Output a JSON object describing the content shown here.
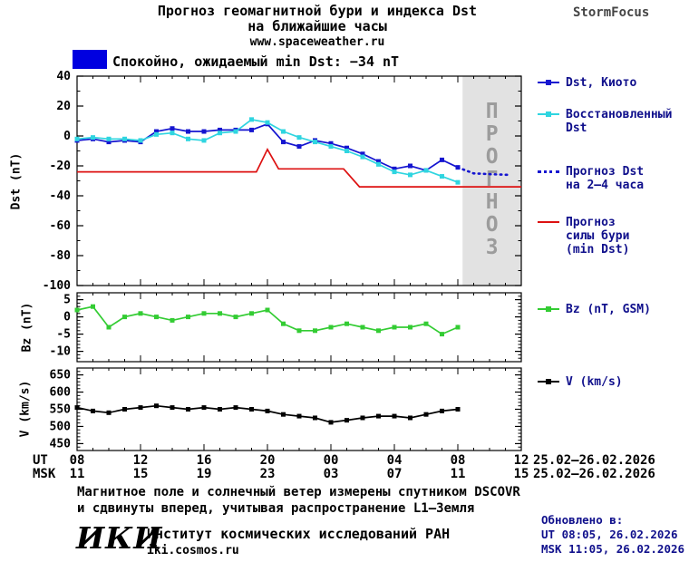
{
  "header": {
    "title_line1": "Прогноз геомагнитной бури и индекса Dst",
    "title_line2": "на ближайшие часы",
    "site": "www.spaceweather.ru",
    "brand": "StormFocus"
  },
  "status": {
    "label": "Спокойно, ожидаемый min Dst: −34 nT"
  },
  "colors": {
    "dst_kyoto": "#1515d0",
    "dst_recon": "#2fd5e0",
    "dst_forecast": "#1515d0",
    "storm_forecast": "#dd1111",
    "bz": "#33cc33",
    "v": "#000000",
    "status_box": "#0000e0",
    "forecast_band": "#e2e2e2",
    "forecast_band_text": "#9c9c9c",
    "legend_text": "#10108c"
  },
  "legend_main": {
    "kyoto": "Dst, Киото",
    "recon_line1": "Восстановленный",
    "recon_line2": "Dst",
    "forecast_line1": "Прогноз Dst",
    "forecast_line2": "на 2–4 часа",
    "storm_line1": "Прогноз",
    "storm_line2": "силы бури",
    "storm_line3": "(min Dst)",
    "bz": "Bz (nT, GSM)",
    "v": "V (km/s)"
  },
  "axes": {
    "dst_label": "Dst (nT)",
    "bz_label": "Bz (nT)",
    "v_label": "V (km/s)",
    "ut_row_label": "UT",
    "msk_row_label": "MSK",
    "ut_ticks": [
      "08",
      "12",
      "16",
      "20",
      "00",
      "04",
      "08",
      "12"
    ],
    "msk_ticks": [
      "11",
      "15",
      "19",
      "23",
      "03",
      "07",
      "11",
      "15"
    ],
    "ut_date": "25.02–26.02.2026",
    "msk_date": "25.02–26.02.2026"
  },
  "footnote": {
    "line1": "Магнитное поле и солнечный ветер измерены спутником DSCOVR",
    "line2": "и сдвинуты вперед, учитывая распространение L1–Земля"
  },
  "footer": {
    "logo": "ИКИ",
    "institute": "Институт космических исследований РАН",
    "site": "iki.cosmos.ru",
    "updated_label": "Обновлено в:",
    "updated_ut": "UT  08:05, 26.02.2026",
    "updated_msk": "MSK 11:05, 26.02.2026"
  },
  "chart_data": [
    {
      "type": "line",
      "title": "Прогноз геомагнитной бури и индекса Dst",
      "ylabel": "Dst (nT)",
      "xlabel": "UT",
      "xlim": [
        8,
        36
      ],
      "ylim": [
        -100,
        40
      ],
      "yticks": [
        40,
        20,
        0,
        -20,
        -40,
        -60,
        -80,
        -100
      ],
      "xtick_hours": [
        8,
        12,
        16,
        20,
        24,
        28,
        32,
        36
      ],
      "x_hours": [
        8,
        9,
        10,
        11,
        12,
        13,
        14,
        15,
        16,
        17,
        18,
        19,
        20,
        21,
        22,
        23,
        24,
        25,
        26,
        27,
        28,
        29,
        30,
        31,
        32
      ],
      "forecast_band": {
        "from": 32.3,
        "to": 36,
        "label": "ПРОГНОЗ"
      },
      "series": [
        {
          "name": "Dst, Киото",
          "color_key": "dst_kyoto",
          "markers": true,
          "values": [
            -3,
            -2,
            -4,
            -3,
            -4,
            3,
            5,
            3,
            3,
            4,
            4,
            4,
            8,
            -4,
            -7,
            -3,
            -5,
            -8,
            -12,
            -17,
            -22,
            -20,
            -23,
            -16,
            -21
          ]
        },
        {
          "name": "Восстановленный Dst",
          "color_key": "dst_recon",
          "markers": true,
          "values": [
            -2,
            -1,
            -2,
            -2,
            -3,
            1,
            2,
            -2,
            -3,
            2,
            3,
            11,
            9,
            3,
            -1,
            -4,
            -7,
            -10,
            -14,
            -19,
            -24,
            -26,
            -23,
            -27,
            -31
          ]
        },
        {
          "name": "Прогноз Dst на 2–4 часа",
          "color_key": "dst_forecast",
          "dashed": true,
          "points": [
            [
              32,
              -21
            ],
            [
              33,
              -25
            ],
            [
              34,
              -25.5
            ],
            [
              35.2,
              -26
            ]
          ]
        },
        {
          "name": "Прогноз силы бури (min Dst)",
          "color_key": "storm_forecast",
          "points": [
            [
              8,
              -24
            ],
            [
              19.3,
              -24
            ],
            [
              20,
              -9
            ],
            [
              20.7,
              -22
            ],
            [
              24.8,
              -22
            ],
            [
              25.8,
              -34
            ],
            [
              36,
              -34
            ]
          ]
        }
      ]
    },
    {
      "type": "line",
      "ylabel": "Bz (nT)",
      "xlim": [
        8,
        36
      ],
      "ylim": [
        -13,
        7
      ],
      "yticks": [
        5,
        0,
        -5,
        -10
      ],
      "x_hours": [
        8,
        9,
        10,
        11,
        12,
        13,
        14,
        15,
        16,
        17,
        18,
        19,
        20,
        21,
        22,
        23,
        24,
        25,
        26,
        27,
        28,
        29,
        30,
        31,
        32
      ],
      "series": [
        {
          "name": "Bz (nT, GSM)",
          "color_key": "bz",
          "markers": true,
          "values": [
            2,
            3,
            -3,
            0,
            1,
            0,
            -1,
            0,
            1,
            1,
            0,
            1,
            2,
            -2,
            -4,
            -4,
            -3,
            -2,
            -3,
            -4,
            -3,
            -3,
            -2,
            -5,
            -3
          ]
        }
      ]
    },
    {
      "type": "line",
      "ylabel": "V (km/s)",
      "xlim": [
        8,
        36
      ],
      "ylim": [
        430,
        670
      ],
      "yticks": [
        650,
        600,
        550,
        500,
        450
      ],
      "x_hours": [
        8,
        9,
        10,
        11,
        12,
        13,
        14,
        15,
        16,
        17,
        18,
        19,
        20,
        21,
        22,
        23,
        24,
        25,
        26,
        27,
        28,
        29,
        30,
        31,
        32
      ],
      "series": [
        {
          "name": "V (km/s)",
          "color_key": "v",
          "markers": true,
          "values": [
            555,
            545,
            540,
            550,
            555,
            560,
            555,
            550,
            555,
            550,
            555,
            550,
            545,
            535,
            530,
            525,
            512,
            518,
            525,
            530,
            530,
            525,
            535,
            545,
            550
          ]
        }
      ]
    }
  ]
}
